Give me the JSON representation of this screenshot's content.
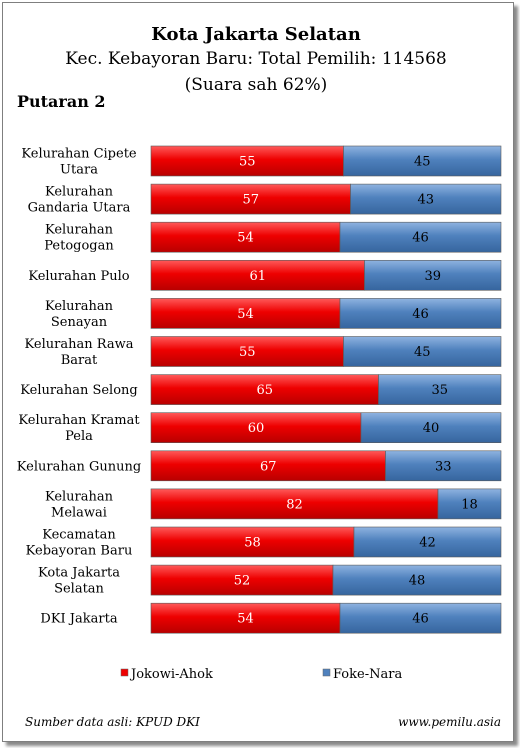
{
  "title": "Kota Jakarta Selatan",
  "subtitle_line1": "Kec. Kebayoran Baru: Total Pemilih: 114568",
  "subtitle_line2": "(Suara sah 62%)",
  "round_label": "Putaran 2",
  "source_text": "Sumber data asli: KPUD DKI",
  "website_text": "www.pemilu.asia",
  "colors": {
    "series_1": "#ee0000",
    "series_2": "#4f81bd",
    "value_text_1": "#ffffff",
    "value_text_2": "#000000"
  },
  "chart_data": {
    "type": "bar",
    "orientation": "horizontal",
    "stacked": true,
    "normalized": "percent",
    "title": "Kota Jakarta Selatan",
    "categories": [
      [
        "Kelurahan Cipete",
        "Utara"
      ],
      [
        "Kelurahan",
        "Gandaria Utara"
      ],
      [
        "Kelurahan",
        "Petogogan"
      ],
      [
        "Kelurahan Pulo"
      ],
      [
        "Kelurahan",
        "Senayan"
      ],
      [
        "Kelurahan Rawa",
        "Barat"
      ],
      [
        "Kelurahan Selong"
      ],
      [
        "Kelurahan Kramat",
        "Pela"
      ],
      [
        "Kelurahan Gunung"
      ],
      [
        "Kelurahan",
        "Melawai"
      ],
      [
        "Kecamatan",
        "Kebayoran Baru"
      ],
      [
        "Kota Jakarta",
        "Selatan"
      ],
      [
        "DKI Jakarta"
      ]
    ],
    "series": [
      {
        "name": "Jokowi-Ahok",
        "values": [
          55,
          57,
          54,
          61,
          54,
          55,
          65,
          60,
          67,
          82,
          58,
          52,
          54
        ]
      },
      {
        "name": "Foke-Nara",
        "values": [
          45,
          43,
          46,
          39,
          46,
          45,
          35,
          40,
          33,
          18,
          42,
          48,
          46
        ]
      }
    ],
    "xlim": [
      0,
      100
    ],
    "grid": false,
    "legend": "bottom"
  }
}
